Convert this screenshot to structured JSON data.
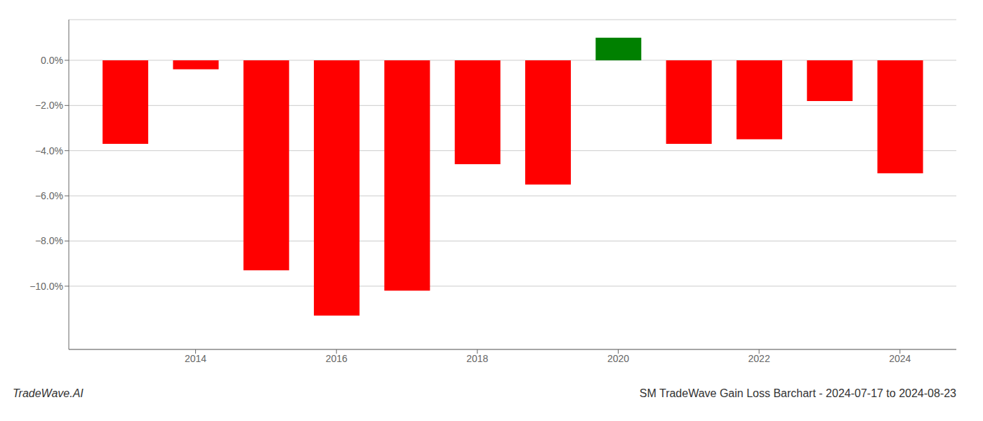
{
  "chart_data": {
    "type": "bar",
    "title": "SM TradeWave Gain Loss Barchart - 2024-07-17 to 2024-08-23",
    "annotations": [
      "TradeWave.AI"
    ],
    "x": [
      2013,
      2014,
      2015,
      2016,
      2017,
      2018,
      2019,
      2020,
      2021,
      2022,
      2023,
      2024
    ],
    "values": [
      -3.7,
      -0.4,
      -9.3,
      -11.3,
      -10.2,
      -4.6,
      -5.5,
      1.0,
      -3.7,
      -3.5,
      -1.8,
      -5.0
    ],
    "colors": [
      "red",
      "red",
      "red",
      "red",
      "red",
      "red",
      "red",
      "green",
      "red",
      "red",
      "red",
      "red"
    ],
    "xlim": [
      2012.2,
      2024.8
    ],
    "xticks": [
      2014,
      2016,
      2018,
      2020,
      2022,
      2024
    ],
    "ylim": [
      -12.8,
      1.8
    ],
    "yticks": [
      {
        "value": 0.0,
        "label": "0.0%"
      },
      {
        "value": -2.0,
        "label": "−2.0%"
      },
      {
        "value": -4.0,
        "label": "−4.0%"
      },
      {
        "value": -6.0,
        "label": "−6.0%"
      },
      {
        "value": -8.0,
        "label": "−8.0%"
      },
      {
        "value": -10.0,
        "label": "−10.0%"
      }
    ],
    "grid": true
  }
}
